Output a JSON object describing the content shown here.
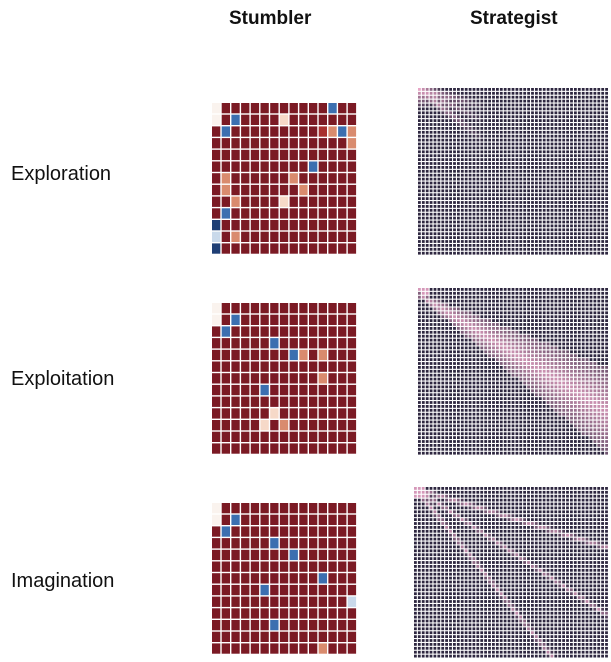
{
  "columns": {
    "stumbler": "Stumbler",
    "strategist": "Strategist"
  },
  "rows": [
    {
      "label": "Exploration"
    },
    {
      "label": "Exploitation"
    },
    {
      "label": "Imagination"
    }
  ],
  "colors": {
    "cell_dark_red": "#7b1a24",
    "cell_red": "#a8302e",
    "cell_orange": "#d98b6e",
    "cell_pale": "#f6d9c8",
    "cell_white": "#faf3ee",
    "cell_blue_dark": "#1f3f75",
    "cell_blue": "#3c6fb0",
    "cell_blue_pale": "#c9d9ea",
    "strategist_base": "#2e2740",
    "strategist_pink": "#e8a5c6",
    "grid_line": "#ffffff"
  },
  "stumbler_grids": [
    {
      "row": "Exploration",
      "cells": [
        [
          "w",
          "d",
          "d",
          "d",
          "d",
          "d",
          "d",
          "d",
          "d",
          "d",
          "d",
          "d",
          "B",
          "d",
          "d"
        ],
        [
          "w",
          "d",
          "B",
          "d",
          "d",
          "d",
          "d",
          "p",
          "d",
          "d",
          "d",
          "d",
          "d",
          "d",
          "d"
        ],
        [
          "d",
          "B",
          "d",
          "d",
          "d",
          "d",
          "d",
          "d",
          "d",
          "d",
          "d",
          "r",
          "o",
          "B",
          "o"
        ],
        [
          "d",
          "d",
          "d",
          "d",
          "d",
          "d",
          "d",
          "d",
          "d",
          "d",
          "d",
          "d",
          "d",
          "d",
          "o"
        ],
        [
          "d",
          "d",
          "d",
          "d",
          "d",
          "d",
          "d",
          "d",
          "d",
          "d",
          "d",
          "d",
          "d",
          "d",
          "d"
        ],
        [
          "d",
          "d",
          "d",
          "d",
          "d",
          "d",
          "d",
          "d",
          "d",
          "d",
          "B",
          "d",
          "d",
          "d",
          "d"
        ],
        [
          "d",
          "o",
          "d",
          "d",
          "d",
          "d",
          "d",
          "d",
          "o",
          "d",
          "d",
          "d",
          "d",
          "d",
          "d"
        ],
        [
          "d",
          "o",
          "d",
          "d",
          "d",
          "d",
          "d",
          "d",
          "d",
          "o",
          "d",
          "d",
          "d",
          "d",
          "d"
        ],
        [
          "d",
          "d",
          "o",
          "d",
          "d",
          "d",
          "d",
          "p",
          "d",
          "d",
          "d",
          "d",
          "d",
          "d",
          "d"
        ],
        [
          "d",
          "B",
          "d",
          "d",
          "d",
          "d",
          "d",
          "d",
          "d",
          "d",
          "d",
          "d",
          "d",
          "d",
          "d"
        ],
        [
          "N",
          "d",
          "d",
          "d",
          "d",
          "d",
          "d",
          "d",
          "d",
          "d",
          "d",
          "d",
          "d",
          "d",
          "d"
        ],
        [
          "P",
          "d",
          "o",
          "d",
          "d",
          "d",
          "d",
          "d",
          "d",
          "d",
          "d",
          "d",
          "d",
          "d",
          "d"
        ],
        [
          "N",
          "d",
          "d",
          "d",
          "d",
          "d",
          "d",
          "d",
          "d",
          "d",
          "d",
          "d",
          "d",
          "d",
          "d"
        ]
      ]
    },
    {
      "row": "Exploitation",
      "cells": [
        [
          "w",
          "d",
          "d",
          "d",
          "d",
          "d",
          "d",
          "d",
          "d",
          "d",
          "d",
          "d",
          "d",
          "d",
          "d"
        ],
        [
          "w",
          "d",
          "B",
          "d",
          "d",
          "d",
          "d",
          "d",
          "d",
          "d",
          "d",
          "d",
          "d",
          "d",
          "d"
        ],
        [
          "d",
          "B",
          "d",
          "d",
          "d",
          "d",
          "d",
          "d",
          "d",
          "d",
          "d",
          "d",
          "d",
          "d",
          "d"
        ],
        [
          "d",
          "d",
          "d",
          "d",
          "d",
          "d",
          "B",
          "d",
          "d",
          "d",
          "d",
          "d",
          "d",
          "d",
          "d"
        ],
        [
          "d",
          "d",
          "d",
          "d",
          "d",
          "d",
          "d",
          "d",
          "B",
          "o",
          "d",
          "o",
          "d",
          "d",
          "d"
        ],
        [
          "d",
          "d",
          "d",
          "d",
          "d",
          "d",
          "d",
          "d",
          "d",
          "d",
          "d",
          "d",
          "d",
          "d",
          "d"
        ],
        [
          "d",
          "d",
          "d",
          "d",
          "d",
          "d",
          "d",
          "d",
          "d",
          "d",
          "d",
          "o",
          "d",
          "d",
          "d"
        ],
        [
          "d",
          "d",
          "d",
          "d",
          "d",
          "B",
          "d",
          "d",
          "d",
          "d",
          "d",
          "d",
          "d",
          "d",
          "d"
        ],
        [
          "d",
          "d",
          "d",
          "d",
          "d",
          "d",
          "d",
          "d",
          "d",
          "d",
          "d",
          "d",
          "d",
          "d",
          "d"
        ],
        [
          "d",
          "d",
          "d",
          "d",
          "d",
          "d",
          "p",
          "d",
          "d",
          "d",
          "d",
          "d",
          "d",
          "d",
          "d"
        ],
        [
          "d",
          "d",
          "d",
          "d",
          "d",
          "p",
          "d",
          "o",
          "d",
          "d",
          "d",
          "d",
          "d",
          "d",
          "d"
        ],
        [
          "d",
          "d",
          "d",
          "d",
          "d",
          "d",
          "d",
          "d",
          "d",
          "d",
          "d",
          "d",
          "d",
          "d",
          "d"
        ],
        [
          "d",
          "d",
          "d",
          "d",
          "d",
          "d",
          "d",
          "d",
          "d",
          "d",
          "d",
          "d",
          "d",
          "d",
          "d"
        ]
      ]
    },
    {
      "row": "Imagination",
      "cells": [
        [
          "w",
          "d",
          "d",
          "d",
          "d",
          "d",
          "d",
          "d",
          "d",
          "d",
          "d",
          "d",
          "d",
          "d",
          "d"
        ],
        [
          "w",
          "d",
          "B",
          "d",
          "d",
          "d",
          "d",
          "d",
          "d",
          "d",
          "d",
          "d",
          "d",
          "d",
          "d"
        ],
        [
          "d",
          "B",
          "d",
          "d",
          "d",
          "d",
          "d",
          "d",
          "d",
          "d",
          "d",
          "d",
          "d",
          "d",
          "d"
        ],
        [
          "d",
          "d",
          "d",
          "d",
          "d",
          "d",
          "B",
          "d",
          "d",
          "d",
          "d",
          "d",
          "d",
          "d",
          "d"
        ],
        [
          "d",
          "d",
          "d",
          "d",
          "d",
          "d",
          "d",
          "d",
          "B",
          "d",
          "d",
          "d",
          "d",
          "d",
          "d"
        ],
        [
          "d",
          "d",
          "d",
          "d",
          "d",
          "d",
          "d",
          "d",
          "d",
          "d",
          "d",
          "d",
          "d",
          "d",
          "d"
        ],
        [
          "d",
          "d",
          "d",
          "d",
          "d",
          "d",
          "d",
          "d",
          "d",
          "d",
          "d",
          "B",
          "d",
          "d",
          "d"
        ],
        [
          "d",
          "d",
          "d",
          "d",
          "d",
          "B",
          "d",
          "d",
          "d",
          "d",
          "d",
          "d",
          "d",
          "d",
          "d"
        ],
        [
          "d",
          "d",
          "d",
          "d",
          "d",
          "d",
          "d",
          "d",
          "d",
          "d",
          "d",
          "d",
          "d",
          "d",
          "P"
        ],
        [
          "d",
          "d",
          "d",
          "d",
          "d",
          "d",
          "d",
          "d",
          "d",
          "d",
          "d",
          "d",
          "d",
          "d",
          "d"
        ],
        [
          "d",
          "d",
          "d",
          "d",
          "d",
          "d",
          "B",
          "d",
          "d",
          "d",
          "d",
          "d",
          "d",
          "d",
          "d"
        ],
        [
          "d",
          "d",
          "d",
          "d",
          "d",
          "d",
          "d",
          "d",
          "d",
          "d",
          "d",
          "d",
          "d",
          "d",
          "d"
        ],
        [
          "d",
          "d",
          "d",
          "d",
          "d",
          "d",
          "d",
          "d",
          "d",
          "d",
          "d",
          "o",
          "d",
          "d",
          "d"
        ]
      ]
    }
  ],
  "strategist_panels": [
    {
      "row": "Exploration",
      "pattern": "fan-corner"
    },
    {
      "row": "Exploitation",
      "pattern": "wide-wedge"
    },
    {
      "row": "Imagination",
      "pattern": "diagonal-streaks"
    }
  ]
}
